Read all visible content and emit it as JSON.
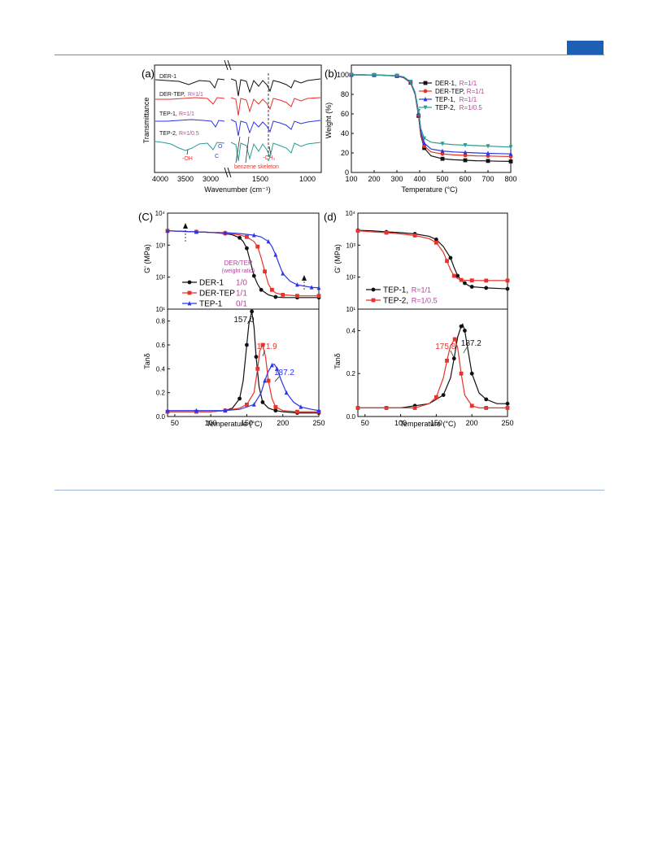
{
  "colors": {
    "black": "#111111",
    "red": "#e8322b",
    "blue": "#2a35e8",
    "teal": "#2b9c92",
    "magenta": "#b5459b",
    "header_blue": "#1d5fb5"
  },
  "panel_a": {
    "label": "(a)",
    "ylabel": "Transmittance",
    "xlabel": "Wavenumber (cm⁻¹)",
    "xticks": [
      "4000",
      "3500",
      "3000",
      "1500",
      "1000"
    ],
    "traces": [
      {
        "name": "DER-1",
        "ratio": ""
      },
      {
        "name": "DER-TEP,",
        "ratio": "R=1/1"
      },
      {
        "name": "TEP-1,",
        "ratio": "R=1/1"
      },
      {
        "name": "TEP-2,",
        "ratio": "R=1/0.5"
      }
    ],
    "annotations": {
      "oh": "-OH",
      "co_top": "O",
      "co_mid": "C",
      "co_bottom": "C",
      "benzene": "benzene skeleton",
      "ch3": "-CH₃"
    }
  },
  "panel_b": {
    "label": "(b)",
    "chart_data": {
      "type": "line",
      "xlabel": "Temperature (°C)",
      "ylabel": "Weight (%)",
      "xlim": [
        100,
        800
      ],
      "ylim": [
        0,
        110
      ],
      "xticks": [
        100,
        200,
        300,
        400,
        500,
        600,
        700,
        800
      ],
      "yticks": [
        0,
        20,
        40,
        60,
        80,
        100
      ],
      "legend_position": "top-right",
      "series": [
        {
          "name": "DER-1,",
          "ratio": "R=1/1",
          "color": "#111111",
          "marker": "square",
          "x": [
            100,
            150,
            200,
            250,
            300,
            330,
            360,
            380,
            395,
            405,
            420,
            450,
            500,
            550,
            600,
            650,
            700,
            750,
            800
          ],
          "y": [
            100,
            100,
            99.8,
            99.5,
            98.8,
            97,
            92,
            80,
            58,
            38,
            25,
            17,
            14,
            13,
            12.5,
            12,
            11.8,
            11.5,
            11.3
          ]
        },
        {
          "name": "DER-TEP,",
          "ratio": "R=1/1",
          "color": "#e8322b",
          "marker": "circle",
          "x": [
            100,
            150,
            200,
            250,
            300,
            330,
            360,
            380,
            395,
            405,
            420,
            450,
            500,
            550,
            600,
            650,
            700,
            750,
            800
          ],
          "y": [
            100,
            100,
            99.8,
            99.5,
            98.8,
            97,
            92,
            80,
            59,
            40,
            27,
            21,
            19,
            18,
            17.5,
            17,
            16.8,
            16.5,
            16.3
          ]
        },
        {
          "name": "TEP-1,",
          "ratio": "R=1/1",
          "color": "#2a35e8",
          "marker": "triangle-up",
          "x": [
            100,
            150,
            200,
            250,
            300,
            330,
            360,
            380,
            395,
            405,
            420,
            450,
            500,
            550,
            600,
            650,
            700,
            750,
            800
          ],
          "y": [
            100,
            100,
            99.8,
            99.6,
            99,
            97.5,
            92.5,
            81,
            61,
            42,
            30,
            24,
            22,
            21,
            20.5,
            20,
            19.6,
            19.3,
            19
          ]
        },
        {
          "name": "TEP-2,",
          "ratio": "R=1/0.5",
          "color": "#2b9c92",
          "marker": "triangle-down",
          "x": [
            100,
            150,
            200,
            250,
            300,
            330,
            360,
            380,
            395,
            405,
            420,
            450,
            500,
            550,
            600,
            650,
            700,
            750,
            800
          ],
          "y": [
            100,
            100,
            99.8,
            99.6,
            99.2,
            98,
            93,
            82,
            63,
            45,
            35,
            31,
            29.5,
            28.5,
            28,
            27.5,
            27,
            26.5,
            26
          ]
        }
      ]
    }
  },
  "panel_c": {
    "label": "(C)",
    "legend_title": "DER/TEP",
    "legend_subtitle": "(weight ratio)",
    "chart_data": [
      {
        "type": "line",
        "ylabel": "G' (MPa)",
        "ylog": true,
        "ylim": [
          10,
          10000
        ],
        "xlim": [
          40,
          250
        ],
        "yticks": [
          "10¹",
          "10²",
          "10³",
          "10⁴"
        ],
        "series": [
          {
            "name": "DER-1",
            "ratio": "1/0",
            "color": "#111111",
            "marker": "circle",
            "x": [
              40,
              60,
              80,
              100,
              120,
              130,
              140,
              145,
              150,
              155,
              160,
              165,
              170,
              180,
              190,
              200,
              220,
              240,
              250
            ],
            "y": [
              2800,
              2700,
              2600,
              2500,
              2300,
              2100,
              1700,
              1300,
              800,
              300,
              110,
              60,
              40,
              28,
              24,
              23,
              23,
              23,
              23
            ]
          },
          {
            "name": "DER-TEP",
            "ratio": "1/1",
            "color": "#e8322b",
            "marker": "square",
            "x": [
              40,
              60,
              80,
              100,
              120,
              140,
              150,
              160,
              165,
              170,
              175,
              180,
              185,
              190,
              200,
              210,
              220,
              240,
              250
            ],
            "y": [
              2800,
              2700,
              2600,
              2500,
              2350,
              2100,
              1800,
              1300,
              900,
              400,
              150,
              60,
              40,
              32,
              28,
              27,
              26,
              26,
              26
            ]
          },
          {
            "name": "TEP-1",
            "ratio": "0/1",
            "color": "#2a35e8",
            "marker": "triangle-up",
            "x": [
              40,
              60,
              80,
              100,
              120,
              140,
              160,
              170,
              180,
              185,
              190,
              195,
              200,
              210,
              220,
              230,
              240,
              250
            ],
            "y": [
              2800,
              2700,
              2600,
              2500,
              2450,
              2300,
              2050,
              1800,
              1300,
              900,
              500,
              250,
              130,
              75,
              58,
              52,
              48,
              46
            ]
          }
        ]
      },
      {
        "type": "line",
        "xlabel": "Temperature (°C)",
        "ylabel": "Tanδ",
        "xlim": [
          40,
          250
        ],
        "ylim": [
          0,
          0.9
        ],
        "xticks": [
          50,
          100,
          150,
          200,
          250
        ],
        "yticks": [
          0.0,
          0.2,
          0.4,
          0.6,
          0.8
        ],
        "peak_labels": [
          "157.0",
          "171.9",
          "187.2"
        ],
        "series": [
          {
            "name": "DER-1",
            "color": "#111111",
            "marker": "circle",
            "x": [
              40,
              60,
              80,
              100,
              120,
              130,
              140,
              145,
              150,
              153,
              157,
              160,
              163,
              167,
              172,
              180,
              190,
              200,
              220,
              250
            ],
            "y": [
              0.04,
              0.04,
              0.04,
              0.04,
              0.05,
              0.07,
              0.15,
              0.3,
              0.6,
              0.78,
              0.88,
              0.75,
              0.5,
              0.25,
              0.12,
              0.07,
              0.05,
              0.04,
              0.03,
              0.03
            ]
          },
          {
            "name": "DER-TEP",
            "color": "#e8322b",
            "marker": "square",
            "x": [
              40,
              60,
              80,
              100,
              120,
              140,
              150,
              160,
              165,
              168,
              172,
              176,
              180,
              185,
              190,
              200,
              220,
              250
            ],
            "y": [
              0.04,
              0.04,
              0.04,
              0.04,
              0.05,
              0.07,
              0.1,
              0.2,
              0.4,
              0.55,
              0.6,
              0.5,
              0.3,
              0.15,
              0.08,
              0.05,
              0.04,
              0.04
            ]
          },
          {
            "name": "TEP-1",
            "color": "#2a35e8",
            "marker": "triangle-up",
            "x": [
              40,
              60,
              80,
              100,
              120,
              140,
              160,
              170,
              175,
              180,
              185,
              188,
              192,
              198,
              205,
              215,
              225,
              240,
              250
            ],
            "y": [
              0.05,
              0.05,
              0.05,
              0.05,
              0.05,
              0.06,
              0.1,
              0.2,
              0.3,
              0.38,
              0.43,
              0.44,
              0.4,
              0.3,
              0.2,
              0.12,
              0.08,
              0.06,
              0.05
            ]
          }
        ]
      }
    ]
  },
  "panel_d": {
    "label": "(d)",
    "chart_data": [
      {
        "type": "line",
        "ylabel": "G' (MPa)",
        "ylog": true,
        "ylim": [
          10,
          10000
        ],
        "xlim": [
          40,
          250
        ],
        "yticks": [
          "10¹",
          "10²",
          "10³",
          "10⁴"
        ],
        "series": [
          {
            "name": "TEP-1,",
            "ratio": "R=1/1",
            "color": "#111111",
            "marker": "circle",
            "x": [
              40,
              60,
              80,
              100,
              120,
              140,
              150,
              160,
              170,
              175,
              180,
              185,
              190,
              195,
              200,
              210,
              220,
              240,
              250
            ],
            "y": [
              2900,
              2800,
              2600,
              2450,
              2250,
              1900,
              1500,
              900,
              400,
              200,
              110,
              80,
              65,
              55,
              50,
              48,
              46,
              44,
              43
            ]
          },
          {
            "name": "TEP-2,",
            "ratio": "R=1/0.5",
            "color": "#e8322b",
            "marker": "square",
            "x": [
              40,
              60,
              80,
              100,
              120,
              140,
              150,
              160,
              165,
              170,
              175,
              180,
              185,
              190,
              200,
              210,
              220,
              240,
              250
            ],
            "y": [
              2800,
              2600,
              2450,
              2250,
              2000,
              1600,
              1200,
              600,
              320,
              170,
              110,
              90,
              82,
              80,
              79,
              78,
              78,
              78,
              78
            ]
          }
        ]
      },
      {
        "type": "line",
        "xlabel": "Temperature (°C)",
        "ylabel": "Tanδ",
        "xlim": [
          40,
          250
        ],
        "ylim": [
          0,
          0.5
        ],
        "xticks": [
          50,
          100,
          150,
          200,
          250
        ],
        "yticks": [
          0.0,
          0.2,
          0.4
        ],
        "peak_labels": [
          "175.8",
          "187.2"
        ],
        "series": [
          {
            "name": "TEP-1",
            "color": "#111111",
            "marker": "circle",
            "x": [
              40,
              60,
              80,
              100,
              120,
              140,
              160,
              170,
              175,
              180,
              185,
              187,
              190,
              195,
              200,
              210,
              220,
              235,
              250
            ],
            "y": [
              0.04,
              0.04,
              0.04,
              0.04,
              0.05,
              0.06,
              0.1,
              0.18,
              0.27,
              0.37,
              0.42,
              0.43,
              0.4,
              0.3,
              0.2,
              0.11,
              0.08,
              0.06,
              0.06
            ]
          },
          {
            "name": "TEP-2",
            "color": "#e8322b",
            "marker": "square",
            "x": [
              40,
              60,
              80,
              100,
              120,
              140,
              150,
              160,
              165,
              170,
              176,
              180,
              185,
              190,
              200,
              210,
              220,
              235,
              250
            ],
            "y": [
              0.04,
              0.04,
              0.04,
              0.04,
              0.04,
              0.06,
              0.09,
              0.18,
              0.26,
              0.33,
              0.36,
              0.32,
              0.2,
              0.1,
              0.05,
              0.04,
              0.04,
              0.04,
              0.04
            ]
          }
        ]
      }
    ]
  }
}
